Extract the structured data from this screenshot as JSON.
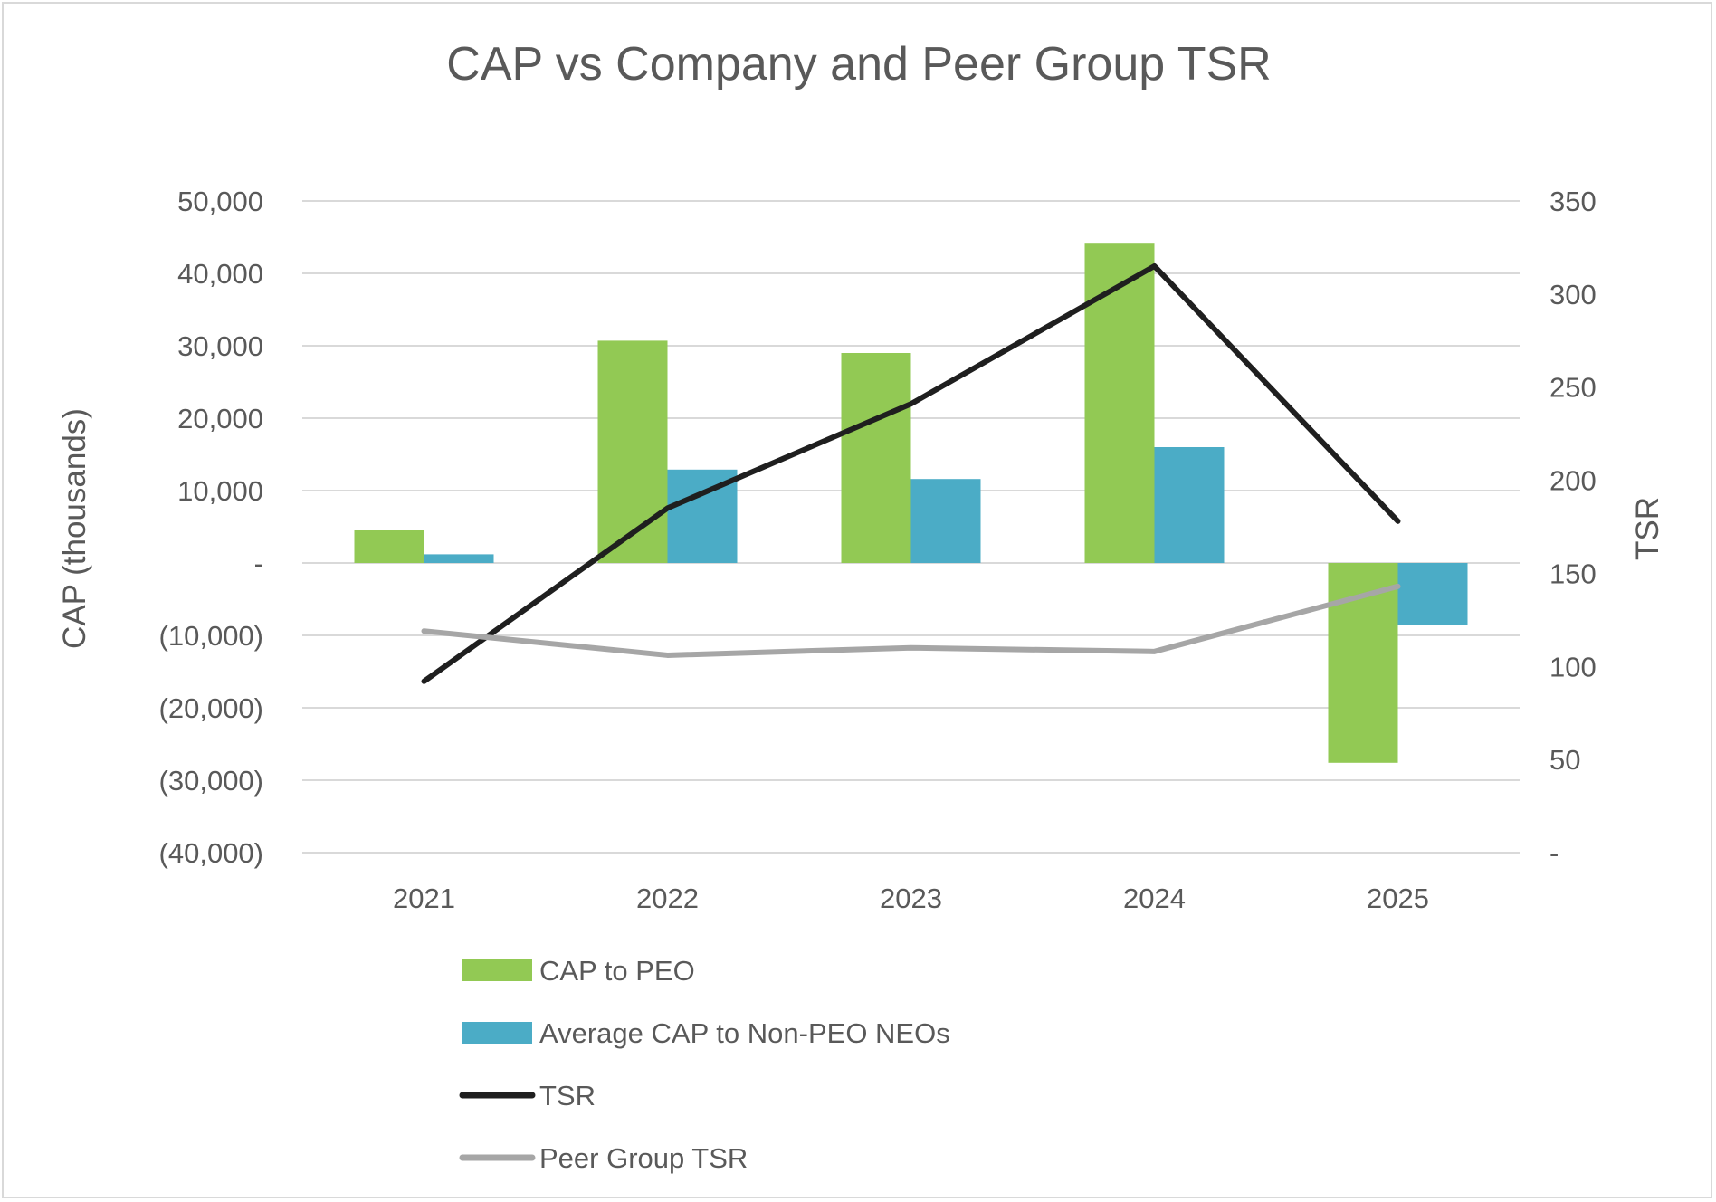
{
  "chart_data": {
    "type": "bar",
    "title": "CAP vs Company and Peer Group TSR",
    "categories": [
      "2021",
      "2022",
      "2023",
      "2024",
      "2025"
    ],
    "ylabel": "CAP (thousands)",
    "y2label": "TSR",
    "ylim": [
      -40000,
      50000
    ],
    "y2lim": [
      0,
      350
    ],
    "yticks": [
      "50,000",
      "40,000",
      "30,000",
      "20,000",
      "10,000",
      "-",
      "(10,000)",
      "(20,000)",
      "(30,000)",
      "(40,000)"
    ],
    "y2ticks": [
      "350",
      "300",
      "250",
      "200",
      "150",
      "100",
      "50",
      "-"
    ],
    "grid": true,
    "legend_position": "bottom",
    "series": [
      {
        "name": "CAP to PEO",
        "kind": "bar",
        "axis": "left",
        "color": "#92c954",
        "values": [
          4500,
          30700,
          29000,
          44100,
          -27600
        ]
      },
      {
        "name": "Average CAP to Non-PEO NEOs",
        "kind": "bar",
        "axis": "left",
        "color": "#4bacc6",
        "values": [
          1200,
          12900,
          11600,
          16000,
          -8500
        ]
      },
      {
        "name": "TSR",
        "kind": "line",
        "axis": "right",
        "color": "#1f1f1f",
        "values": [
          92,
          185,
          241,
          315,
          178
        ]
      },
      {
        "name": "Peer Group TSR",
        "kind": "line",
        "axis": "right",
        "color": "#a6a6a6",
        "values": [
          119,
          106,
          110,
          108,
          143
        ]
      }
    ]
  }
}
